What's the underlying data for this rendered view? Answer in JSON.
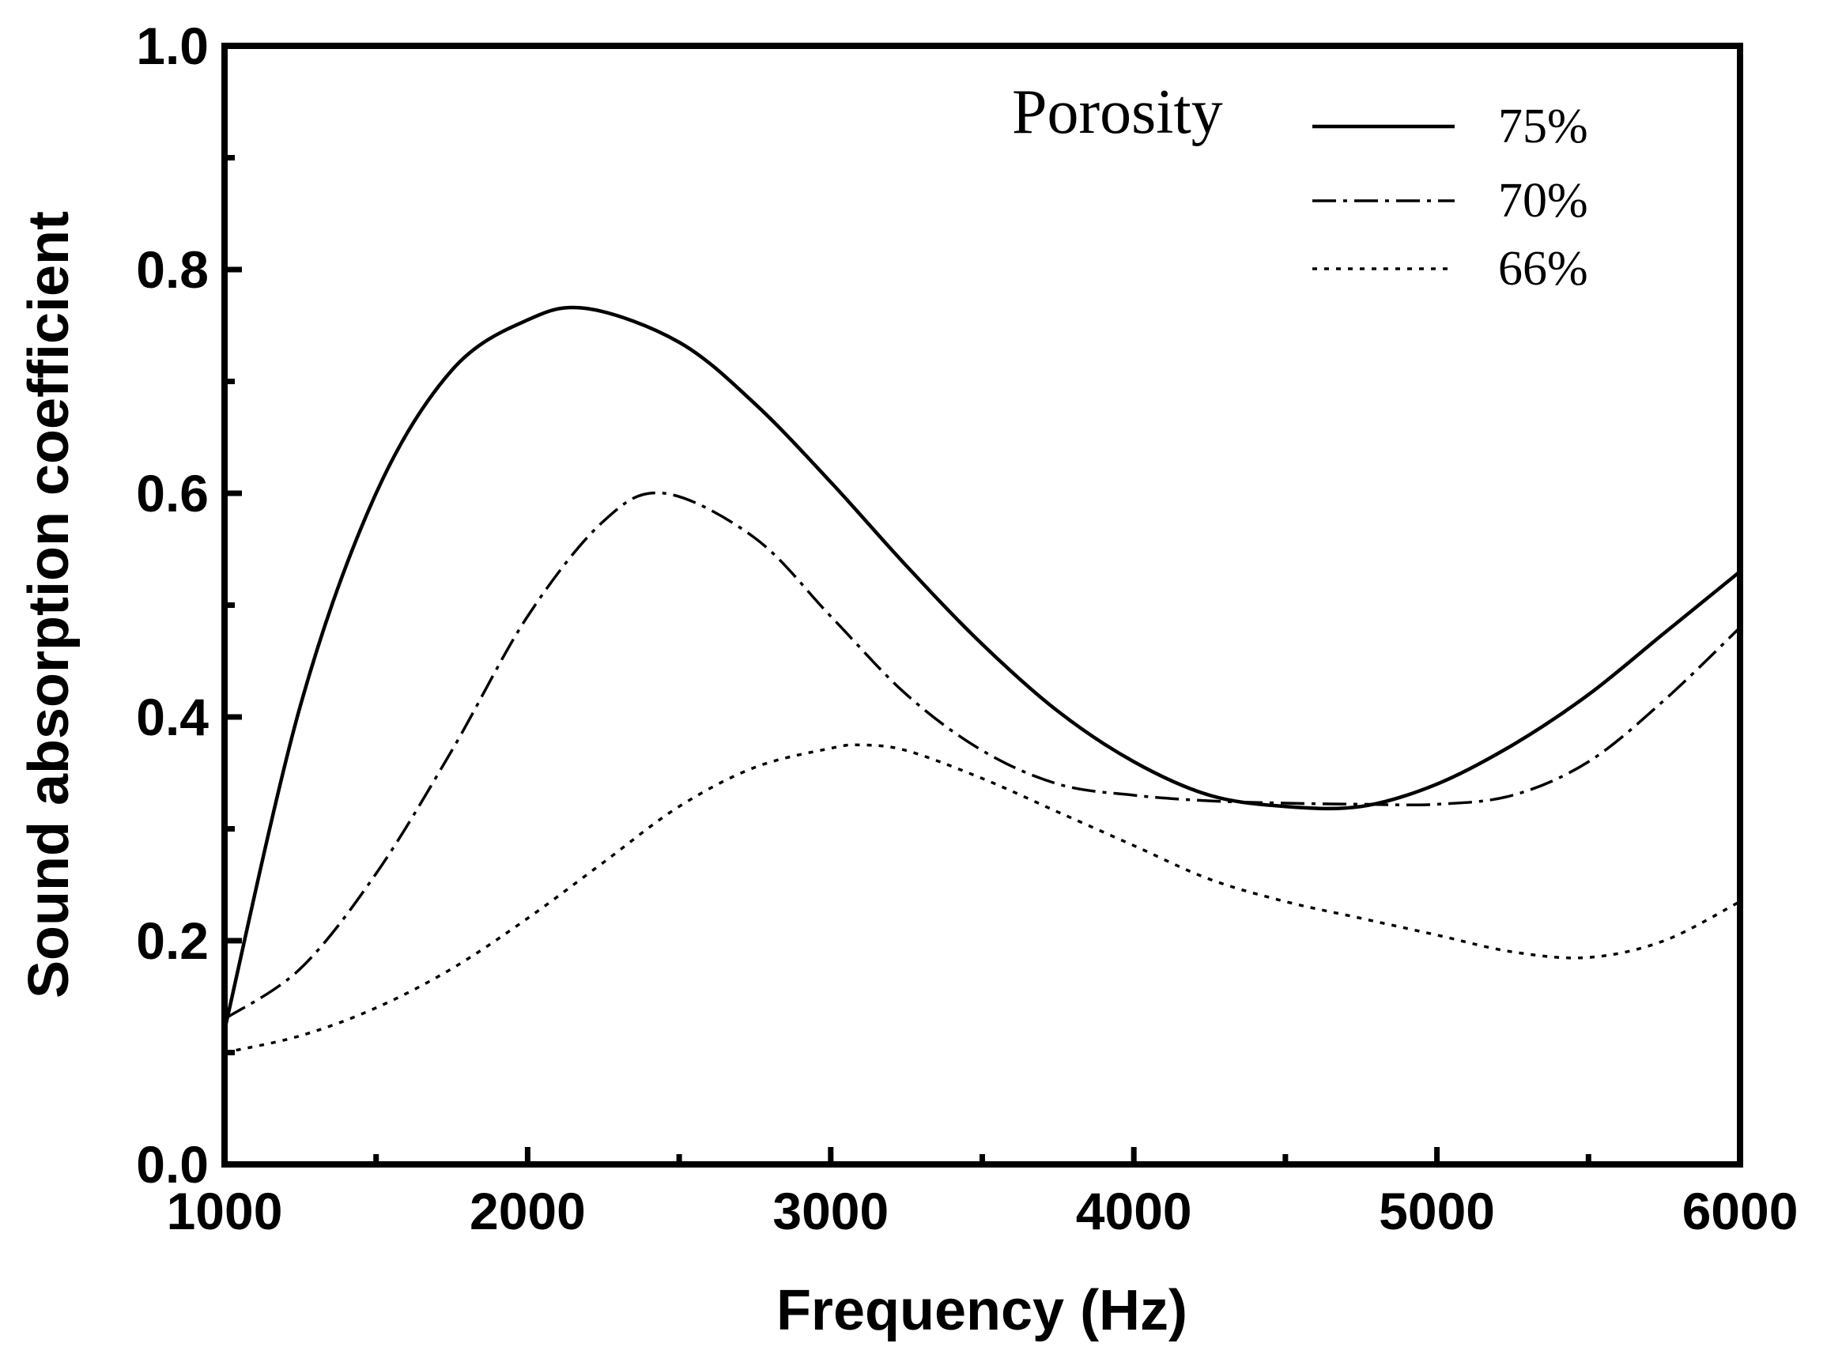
{
  "chart_data": {
    "type": "line",
    "title": "",
    "xlabel": "Frequency (Hz)",
    "ylabel": "Sound absorption coefficient",
    "xlim": [
      1000,
      6000
    ],
    "ylim": [
      0.0,
      1.0
    ],
    "x_ticks": [
      1000,
      2000,
      3000,
      4000,
      5000,
      6000
    ],
    "x_tick_labels": [
      "1000",
      "2000",
      "3000",
      "4000",
      "5000",
      "6000"
    ],
    "y_ticks": [
      0.0,
      0.2,
      0.4,
      0.6,
      0.8,
      1.0
    ],
    "y_tick_labels": [
      "0.0",
      "0.2",
      "0.4",
      "0.6",
      "0.8",
      "1.0"
    ],
    "grid": false,
    "legend": {
      "title": "Porosity",
      "position": "top-right"
    },
    "series": [
      {
        "name": "75%",
        "style": "solid",
        "x": [
          1000,
          1250,
          1500,
          1750,
          2000,
          2200,
          2500,
          2750,
          3000,
          3250,
          3500,
          3750,
          4000,
          4250,
          4500,
          4750,
          5000,
          5250,
          5500,
          5750,
          6000
        ],
        "y": [
          0.12,
          0.41,
          0.6,
          0.71,
          0.755,
          0.765,
          0.735,
          0.68,
          0.61,
          0.535,
          0.465,
          0.405,
          0.36,
          0.33,
          0.32,
          0.32,
          0.34,
          0.375,
          0.42,
          0.475,
          0.53
        ]
      },
      {
        "name": "70%",
        "style": "dashdot",
        "x": [
          1000,
          1250,
          1500,
          1750,
          2000,
          2250,
          2450,
          2750,
          3000,
          3250,
          3500,
          3750,
          4000,
          4250,
          4500,
          4750,
          5000,
          5250,
          5500,
          5750,
          6000
        ],
        "y": [
          0.13,
          0.175,
          0.26,
          0.37,
          0.49,
          0.575,
          0.6,
          0.56,
          0.49,
          0.42,
          0.37,
          0.34,
          0.33,
          0.325,
          0.323,
          0.322,
          0.322,
          0.33,
          0.36,
          0.415,
          0.48
        ]
      },
      {
        "name": "66%",
        "style": "dotted",
        "x": [
          1000,
          1250,
          1500,
          1750,
          2000,
          2250,
          2500,
          2750,
          3000,
          3100,
          3250,
          3500,
          3750,
          4000,
          4250,
          4500,
          4750,
          5000,
          5250,
          5500,
          5750,
          6000
        ],
        "y": [
          0.1,
          0.115,
          0.14,
          0.175,
          0.22,
          0.27,
          0.32,
          0.355,
          0.372,
          0.375,
          0.37,
          0.345,
          0.315,
          0.285,
          0.255,
          0.235,
          0.22,
          0.205,
          0.19,
          0.185,
          0.2,
          0.235
        ]
      }
    ]
  }
}
